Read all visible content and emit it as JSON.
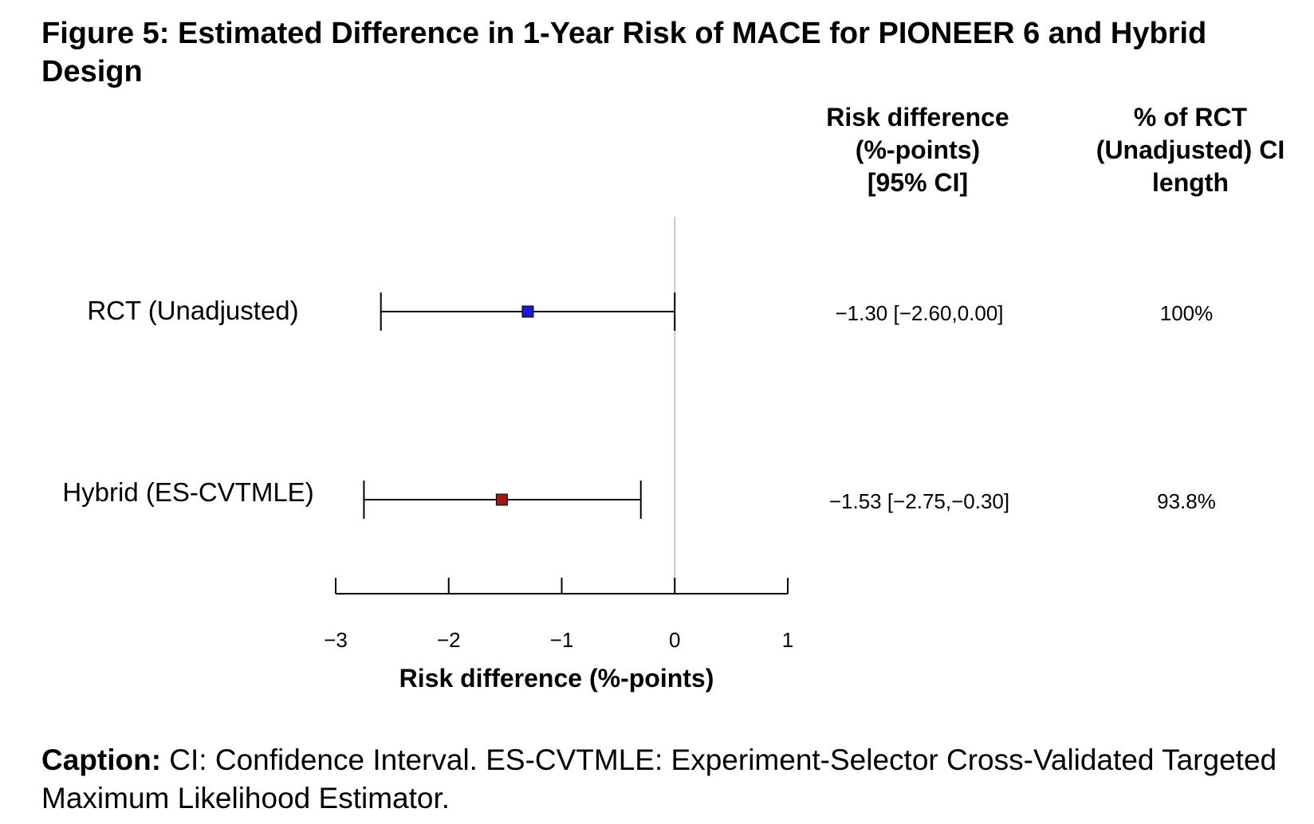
{
  "figure": {
    "title": "Figure 5: Estimated Difference in 1-Year Risk of MACE for PIONEER 6 and Hybrid Design",
    "caption_label": "Caption:",
    "caption_text": " CI: Confidence Interval. ES-CVTMLE: Experiment-Selector Cross-Validated Targeted Maximum Likelihood Estimator."
  },
  "chart_data": {
    "type": "forest",
    "xlabel": "Risk difference (%-points)",
    "xlim": [
      -3,
      1
    ],
    "xticks": [
      -3,
      -2,
      -1,
      0,
      1
    ],
    "xtick_labels": [
      "−3",
      "−2",
      "−1",
      "0",
      "1"
    ],
    "reference_line": 0,
    "columns": [
      {
        "name": "risk_difference",
        "header_lines": [
          "Risk difference",
          "(%-points)",
          "[95% CI]"
        ]
      },
      {
        "name": "pct_ci_length",
        "header_lines": [
          "% of RCT",
          "(Unadjusted) CI",
          "length"
        ]
      }
    ],
    "rows": [
      {
        "label": "RCT (Unadjusted)",
        "estimate": -1.3,
        "lower": -2.6,
        "upper": 0.0,
        "marker_color": "#1a1ad6",
        "risk_difference_text": "−1.30 [−2.60,0.00]",
        "pct_ci_length_text": "100%"
      },
      {
        "label": "Hybrid (ES-CVTMLE)",
        "estimate": -1.53,
        "lower": -2.75,
        "upper": -0.3,
        "marker_color": "#a01818",
        "risk_difference_text": "−1.53 [−2.75,−0.30]",
        "pct_ci_length_text": "93.8%"
      }
    ]
  }
}
